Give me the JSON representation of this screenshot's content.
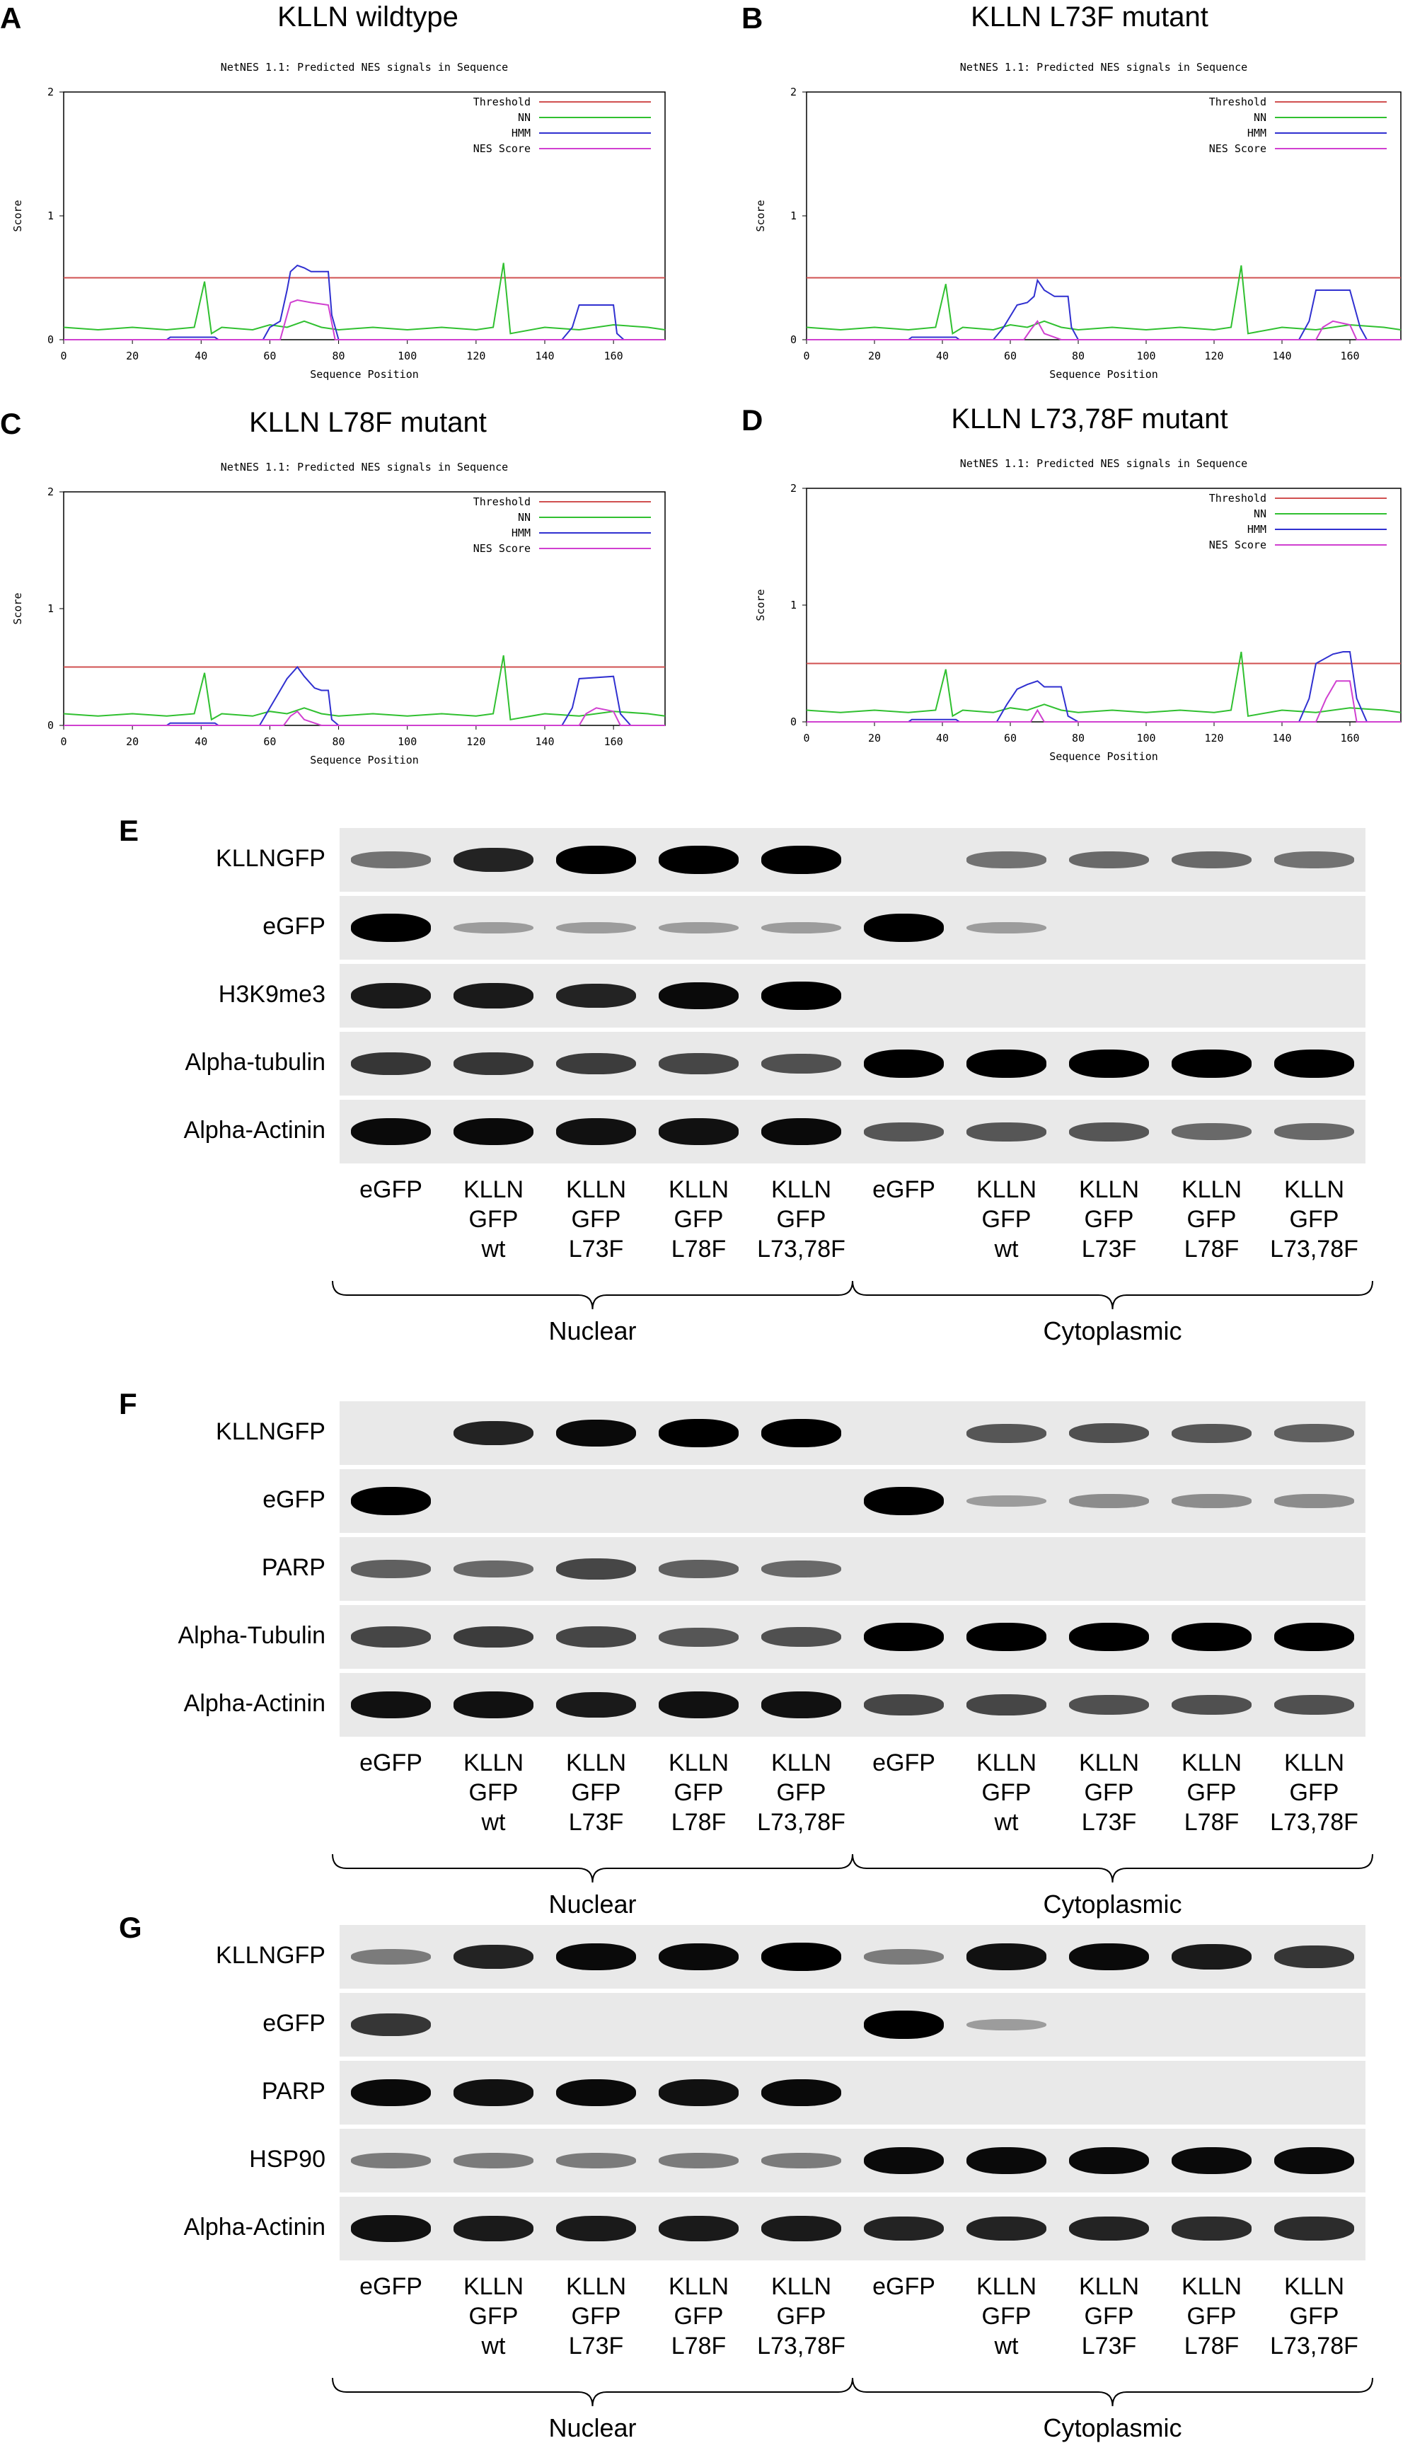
{
  "nes_panels": [
    {
      "letter": "A",
      "heading": "KLLN wildtype",
      "chart_data": {
        "type": "line",
        "title": "NetNES 1.1: Predicted NES signals in Sequence",
        "xlabel": "Sequence Position",
        "ylabel": "Score",
        "xlim": [
          0,
          175
        ],
        "ylim": [
          0,
          2
        ],
        "xticks": [
          0,
          20,
          40,
          60,
          80,
          100,
          120,
          140,
          160
        ],
        "yticks": [
          0,
          1,
          2
        ],
        "legend": [
          "Threshold",
          "NN",
          "HMM",
          "NES Score"
        ],
        "series": [
          {
            "name": "Threshold",
            "color": "#d05050",
            "x": [
              0,
              175
            ],
            "y": [
              0.5,
              0.5
            ]
          },
          {
            "name": "NN",
            "color": "#30c030",
            "x": [
              0,
              10,
              20,
              30,
              38,
              41,
              43,
              46,
              55,
              60,
              65,
              70,
              75,
              80,
              90,
              100,
              110,
              120,
              125,
              128,
              130,
              140,
              150,
              160,
              170,
              175
            ],
            "y": [
              0.1,
              0.08,
              0.1,
              0.08,
              0.1,
              0.47,
              0.05,
              0.1,
              0.08,
              0.12,
              0.1,
              0.15,
              0.1,
              0.08,
              0.1,
              0.08,
              0.1,
              0.08,
              0.1,
              0.62,
              0.05,
              0.1,
              0.08,
              0.12,
              0.1,
              0.08
            ]
          },
          {
            "name": "HMM",
            "color": "#3030d0",
            "x": [
              0,
              30,
              31,
              44,
              45,
              58,
              60,
              63,
              65,
              66,
              68,
              70,
              72,
              77,
              78,
              80,
              145,
              148,
              150,
              160,
              161,
              163,
              175
            ],
            "y": [
              0.0,
              0.0,
              0.02,
              0.02,
              0.0,
              0.0,
              0.1,
              0.15,
              0.4,
              0.55,
              0.6,
              0.58,
              0.55,
              0.55,
              0.2,
              0.0,
              0.0,
              0.1,
              0.28,
              0.28,
              0.05,
              0.0,
              0.0
            ]
          },
          {
            "name": "NES Score",
            "color": "#d040d0",
            "x": [
              0,
              63,
              66,
              68,
              72,
              77,
              79,
              80,
              175
            ],
            "y": [
              0.0,
              0.0,
              0.3,
              0.32,
              0.3,
              0.28,
              0.0,
              0.0,
              0.0
            ]
          }
        ]
      }
    },
    {
      "letter": "B",
      "heading": "KLLN L73F mutant",
      "chart_data": {
        "type": "line",
        "title": "NetNES 1.1: Predicted NES signals in Sequence",
        "xlabel": "Sequence Position",
        "ylabel": "Score",
        "xlim": [
          0,
          175
        ],
        "ylim": [
          0,
          2
        ],
        "xticks": [
          0,
          20,
          40,
          60,
          80,
          100,
          120,
          140,
          160
        ],
        "yticks": [
          0,
          1,
          2
        ],
        "legend": [
          "Threshold",
          "NN",
          "HMM",
          "NES Score"
        ],
        "series": [
          {
            "name": "Threshold",
            "color": "#d05050",
            "x": [
              0,
              175
            ],
            "y": [
              0.5,
              0.5
            ]
          },
          {
            "name": "NN",
            "color": "#30c030",
            "x": [
              0,
              10,
              20,
              30,
              38,
              41,
              43,
              46,
              55,
              60,
              65,
              70,
              75,
              80,
              90,
              100,
              110,
              120,
              125,
              128,
              130,
              140,
              150,
              160,
              170,
              175
            ],
            "y": [
              0.1,
              0.08,
              0.1,
              0.08,
              0.1,
              0.45,
              0.05,
              0.1,
              0.08,
              0.12,
              0.1,
              0.15,
              0.1,
              0.08,
              0.1,
              0.08,
              0.1,
              0.08,
              0.1,
              0.6,
              0.05,
              0.1,
              0.08,
              0.12,
              0.1,
              0.08
            ]
          },
          {
            "name": "HMM",
            "color": "#3030d0",
            "x": [
              0,
              30,
              31,
              44,
              45,
              55,
              58,
              62,
              65,
              67,
              68,
              70,
              73,
              77,
              78,
              80,
              145,
              148,
              150,
              160,
              163,
              165,
              175
            ],
            "y": [
              0.0,
              0.0,
              0.02,
              0.02,
              0.0,
              0.0,
              0.1,
              0.28,
              0.3,
              0.35,
              0.48,
              0.4,
              0.35,
              0.35,
              0.1,
              0.0,
              0.0,
              0.15,
              0.4,
              0.4,
              0.1,
              0.0,
              0.0
            ]
          },
          {
            "name": "NES Score",
            "color": "#d040d0",
            "x": [
              0,
              64,
              66,
              68,
              70,
              75,
              77,
              150,
              152,
              155,
              160,
              162,
              175
            ],
            "y": [
              0.0,
              0.0,
              0.08,
              0.15,
              0.05,
              0.0,
              0.0,
              0.0,
              0.1,
              0.15,
              0.12,
              0.0,
              0.0
            ]
          }
        ]
      }
    },
    {
      "letter": "C",
      "heading": "KLLN L78F mutant",
      "chart_data": {
        "type": "line",
        "title": "NetNES 1.1: Predicted NES signals in Sequence",
        "xlabel": "Sequence Position",
        "ylabel": "Score",
        "xlim": [
          0,
          175
        ],
        "ylim": [
          0,
          2
        ],
        "xticks": [
          0,
          20,
          40,
          60,
          80,
          100,
          120,
          140,
          160
        ],
        "yticks": [
          0,
          1,
          2
        ],
        "legend": [
          "Threshold",
          "NN",
          "HMM",
          "NES Score"
        ],
        "series": [
          {
            "name": "Threshold",
            "color": "#d05050",
            "x": [
              0,
              175
            ],
            "y": [
              0.5,
              0.5
            ]
          },
          {
            "name": "NN",
            "color": "#30c030",
            "x": [
              0,
              10,
              20,
              30,
              38,
              41,
              43,
              46,
              55,
              60,
              65,
              70,
              75,
              80,
              90,
              100,
              110,
              120,
              125,
              128,
              130,
              140,
              150,
              160,
              170,
              175
            ],
            "y": [
              0.1,
              0.08,
              0.1,
              0.08,
              0.1,
              0.45,
              0.05,
              0.1,
              0.08,
              0.12,
              0.1,
              0.15,
              0.1,
              0.08,
              0.1,
              0.08,
              0.1,
              0.08,
              0.1,
              0.6,
              0.05,
              0.1,
              0.08,
              0.12,
              0.1,
              0.08
            ]
          },
          {
            "name": "HMM",
            "color": "#3030d0",
            "x": [
              0,
              30,
              31,
              44,
              45,
              57,
              60,
              63,
              65,
              68,
              70,
              73,
              75,
              77,
              78,
              80,
              145,
              148,
              150,
              160,
              162,
              165,
              175
            ],
            "y": [
              0.0,
              0.0,
              0.02,
              0.02,
              0.0,
              0.0,
              0.15,
              0.3,
              0.4,
              0.5,
              0.42,
              0.32,
              0.3,
              0.3,
              0.05,
              0.0,
              0.0,
              0.15,
              0.4,
              0.42,
              0.1,
              0.0,
              0.0
            ]
          },
          {
            "name": "NES Score",
            "color": "#d040d0",
            "x": [
              0,
              64,
              66,
              68,
              70,
              75,
              77,
              150,
              152,
              155,
              160,
              162,
              175
            ],
            "y": [
              0.0,
              0.0,
              0.08,
              0.12,
              0.05,
              0.0,
              0.0,
              0.0,
              0.1,
              0.15,
              0.12,
              0.0,
              0.0
            ]
          }
        ]
      }
    },
    {
      "letter": "D",
      "heading": "KLLN L73,78F mutant",
      "chart_data": {
        "type": "line",
        "title": "NetNES 1.1: Predicted NES signals in Sequence",
        "xlabel": "Sequence Position",
        "ylabel": "Score",
        "xlim": [
          0,
          175
        ],
        "ylim": [
          0,
          2
        ],
        "xticks": [
          0,
          20,
          40,
          60,
          80,
          100,
          120,
          140,
          160
        ],
        "yticks": [
          0,
          1,
          2
        ],
        "legend": [
          "Threshold",
          "NN",
          "HMM",
          "NES Score"
        ],
        "series": [
          {
            "name": "Threshold",
            "color": "#d05050",
            "x": [
              0,
              175
            ],
            "y": [
              0.5,
              0.5
            ]
          },
          {
            "name": "NN",
            "color": "#30c030",
            "x": [
              0,
              10,
              20,
              30,
              38,
              41,
              43,
              46,
              55,
              60,
              65,
              70,
              75,
              80,
              90,
              100,
              110,
              120,
              125,
              128,
              130,
              140,
              150,
              160,
              170,
              175
            ],
            "y": [
              0.1,
              0.08,
              0.1,
              0.08,
              0.1,
              0.45,
              0.05,
              0.1,
              0.08,
              0.12,
              0.1,
              0.15,
              0.1,
              0.08,
              0.1,
              0.08,
              0.1,
              0.08,
              0.1,
              0.6,
              0.05,
              0.1,
              0.08,
              0.12,
              0.1,
              0.08
            ]
          },
          {
            "name": "HMM",
            "color": "#3030d0",
            "x": [
              0,
              30,
              31,
              44,
              45,
              56,
              59,
              62,
              65,
              68,
              70,
              75,
              77,
              80,
              145,
              148,
              150,
              155,
              158,
              160,
              162,
              165,
              175
            ],
            "y": [
              0.0,
              0.0,
              0.02,
              0.02,
              0.0,
              0.0,
              0.15,
              0.28,
              0.32,
              0.35,
              0.3,
              0.3,
              0.05,
              0.0,
              0.0,
              0.2,
              0.5,
              0.58,
              0.6,
              0.6,
              0.2,
              0.0,
              0.0
            ]
          },
          {
            "name": "NES Score",
            "color": "#d040d0",
            "x": [
              0,
              66,
              68,
              70,
              150,
              153,
              156,
              160,
              162,
              175
            ],
            "y": [
              0.0,
              0.0,
              0.1,
              0.0,
              0.0,
              0.2,
              0.35,
              0.35,
              0.0,
              0.0
            ]
          }
        ]
      }
    }
  ],
  "blot_panels": [
    {
      "letter": "E",
      "rows": [
        {
          "label": "KLLNGFP",
          "intensity": [
            0.35,
            0.8,
            1.0,
            1.0,
            1.0,
            0.0,
            0.35,
            0.4,
            0.4,
            0.35
          ]
        },
        {
          "label": "eGFP",
          "intensity": [
            1.0,
            0.1,
            0.1,
            0.1,
            0.1,
            1.0,
            0.1,
            0.0,
            0.0,
            0.0
          ]
        },
        {
          "label": "H3K9me3",
          "intensity": [
            0.85,
            0.85,
            0.8,
            0.95,
            1.0,
            0.0,
            0.0,
            0.0,
            0.0,
            0.0
          ]
        },
        {
          "label": "Alpha-tubulin",
          "intensity": [
            0.7,
            0.7,
            0.65,
            0.6,
            0.55,
            1.0,
            1.0,
            1.0,
            1.0,
            1.0
          ]
        },
        {
          "label": "Alpha-Actinin",
          "intensity": [
            0.95,
            0.95,
            0.9,
            0.9,
            0.95,
            0.5,
            0.5,
            0.5,
            0.4,
            0.4
          ]
        }
      ],
      "lanes": [
        "eGFP",
        "KLLN\nGFP\nwt",
        "KLLN\nGFP\nL73F",
        "KLLN\nGFP\nL78F",
        "KLLN\nGFP\nL73,78F",
        "eGFP",
        "KLLN\nGFP\nwt",
        "KLLN\nGFP\nL73F",
        "KLLN\nGFP\nL78F",
        "KLLN\nGFP\nL73,78F"
      ],
      "groups": [
        "Nuclear",
        "Cytoplasmic"
      ]
    },
    {
      "letter": "F",
      "rows": [
        {
          "label": "KLLNGFP",
          "intensity": [
            0.0,
            0.8,
            0.95,
            1.0,
            1.0,
            0.0,
            0.5,
            0.55,
            0.5,
            0.45
          ]
        },
        {
          "label": "eGFP",
          "intensity": [
            1.0,
            0.0,
            0.0,
            0.0,
            0.0,
            1.0,
            0.1,
            0.2,
            0.2,
            0.2
          ]
        },
        {
          "label": "PARP",
          "intensity": [
            0.45,
            0.4,
            0.6,
            0.45,
            0.4,
            0.0,
            0.0,
            0.0,
            0.0,
            0.0
          ]
        },
        {
          "label": "Alpha-Tubulin",
          "intensity": [
            0.6,
            0.65,
            0.6,
            0.5,
            0.55,
            1.0,
            1.0,
            1.0,
            1.0,
            1.0
          ]
        },
        {
          "label": "Alpha-Actinin",
          "intensity": [
            0.9,
            0.9,
            0.85,
            0.9,
            0.9,
            0.6,
            0.6,
            0.55,
            0.55,
            0.55
          ]
        }
      ],
      "lanes": [
        "eGFP",
        "KLLN\nGFP\nwt",
        "KLLN\nGFP\nL73F",
        "KLLN\nGFP\nL78F",
        "KLLN\nGFP\nL73,78F",
        "eGFP",
        "KLLN\nGFP\nwt",
        "KLLN\nGFP\nL73F",
        "KLLN\nGFP\nL78F",
        "KLLN\nGFP\nL73,78F"
      ],
      "groups": [
        "Nuclear",
        "Cytoplasmic"
      ]
    },
    {
      "letter": "G",
      "rows": [
        {
          "label": "KLLNGFP",
          "intensity": [
            0.3,
            0.8,
            0.95,
            0.95,
            1.0,
            0.3,
            0.9,
            0.95,
            0.85,
            0.7
          ]
        },
        {
          "label": "eGFP",
          "intensity": [
            0.7,
            0.0,
            0.0,
            0.0,
            0.0,
            1.0,
            0.1,
            0.0,
            0.0,
            0.0
          ]
        },
        {
          "label": "PARP",
          "intensity": [
            0.95,
            0.9,
            0.95,
            0.9,
            0.95,
            0.0,
            0.0,
            0.0,
            0.0,
            0.0
          ]
        },
        {
          "label": "HSP90",
          "intensity": [
            0.3,
            0.3,
            0.3,
            0.3,
            0.3,
            0.95,
            0.95,
            0.95,
            0.95,
            0.95
          ]
        },
        {
          "label": "Alpha-Actinin",
          "intensity": [
            0.9,
            0.85,
            0.85,
            0.85,
            0.85,
            0.8,
            0.8,
            0.8,
            0.75,
            0.75
          ]
        }
      ],
      "lanes": [
        "eGFP",
        "KLLN\nGFP\nwt",
        "KLLN\nGFP\nL73F",
        "KLLN\nGFP\nL78F",
        "KLLN\nGFP\nL73,78F",
        "eGFP",
        "KLLN\nGFP\nwt",
        "KLLN\nGFP\nL73F",
        "KLLN\nGFP\nL78F",
        "KLLN\nGFP\nL73,78F"
      ],
      "groups": [
        "Nuclear",
        "Cytoplasmic"
      ]
    }
  ]
}
